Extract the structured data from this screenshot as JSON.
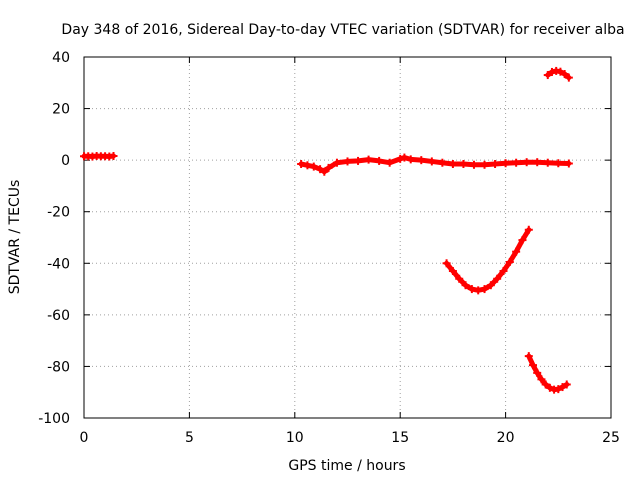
{
  "chart_data": {
    "type": "scatter",
    "title": "Day 348 of 2016, Sidereal Day-to-day VTEC variation (SDTVAR) for receiver alba",
    "xlabel": "GPS time / hours",
    "ylabel": "SDTVAR / TECUs",
    "xlim": [
      0,
      25
    ],
    "ylim": [
      -100,
      40
    ],
    "x_ticks": [
      0,
      5,
      10,
      15,
      20,
      25
    ],
    "y_ticks": [
      -100,
      -80,
      -60,
      -40,
      -20,
      0,
      20,
      40
    ],
    "grid": true,
    "legend": "none",
    "marker_color": "#ff0000",
    "series": [
      {
        "x": [
          0.0,
          0.2,
          0.4,
          0.6,
          0.8,
          1.0,
          1.2,
          1.4
        ],
        "y": [
          1.5,
          1.5,
          1.4,
          1.6,
          1.5,
          1.5,
          1.4,
          1.6
        ]
      },
      {
        "x": [
          10.3,
          10.6,
          10.9,
          11.2,
          11.4,
          11.6,
          12.0,
          12.5,
          13.0,
          13.5,
          14.0,
          14.5,
          15.0,
          15.2,
          15.5,
          16.0,
          16.5,
          17.0,
          17.5,
          18.0,
          18.5,
          19.0,
          19.5,
          20.0,
          20.5,
          21.0,
          21.5,
          22.0,
          22.5,
          23.0
        ],
        "y": [
          -1.5,
          -2.0,
          -2.5,
          -3.5,
          -4.5,
          -3.0,
          -1.0,
          -0.5,
          -0.3,
          0.2,
          -0.3,
          -1.0,
          0.5,
          1.0,
          0.3,
          0.0,
          -0.5,
          -1.0,
          -1.5,
          -1.5,
          -1.8,
          -1.8,
          -1.5,
          -1.2,
          -1.0,
          -0.8,
          -0.8,
          -1.0,
          -1.2,
          -1.3
        ]
      },
      {
        "x": [
          17.2,
          17.5,
          17.8,
          18.1,
          18.4,
          18.7,
          19.0,
          19.3,
          19.6,
          19.9,
          20.2,
          20.5,
          20.8,
          21.1
        ],
        "y": [
          -40,
          -43,
          -46,
          -48.5,
          -50,
          -50.5,
          -50,
          -48.5,
          -46,
          -43,
          -39.5,
          -35.5,
          -31,
          -27
        ]
      },
      {
        "x": [
          21.1,
          21.3,
          21.5,
          21.7,
          21.9,
          22.1,
          22.3,
          22.5,
          22.7,
          22.9
        ],
        "y": [
          -76,
          -79.5,
          -82.5,
          -85,
          -87,
          -88.3,
          -89,
          -88.8,
          -88,
          -87
        ]
      },
      {
        "x": [
          22.0,
          22.2,
          22.4,
          22.6,
          22.8,
          23.0
        ],
        "y": [
          33,
          34.2,
          34.6,
          34.3,
          33.4,
          32
        ]
      }
    ]
  }
}
